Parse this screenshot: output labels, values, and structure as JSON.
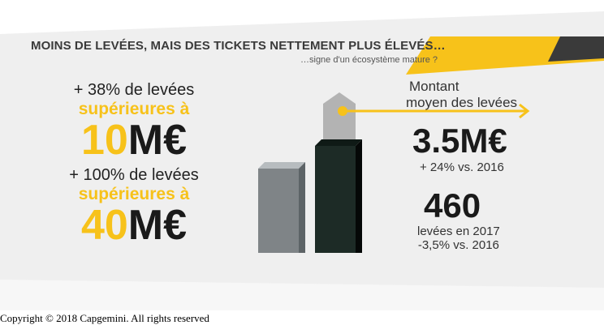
{
  "title": "MOINS DE LEVÉES, MAIS DES TICKETS NETTEMENT PLUS ÉLEVÉS…",
  "subtitle": "…signe d'un écosystème mature ?",
  "left_stats": [
    {
      "line1": "+ 38% de levées",
      "line2": "supérieures à",
      "amount": "10",
      "unit": "M€"
    },
    {
      "line1": "+ 100% de levées",
      "line2": "supérieures à",
      "amount": "40",
      "unit": "M€"
    }
  ],
  "right": {
    "average_label_line1": "Montant",
    "average_label_line2": "moyen des levées",
    "average_value": "3.5M€",
    "average_change": "+ 24% vs. 2016",
    "count_value": "460",
    "count_caption_line1": "levées en 2017",
    "count_caption_line2": "-3,5% vs. 2016"
  },
  "copyright": "Copyright © 2018 Capgemini. All rights reserved",
  "colors": {
    "accent": "#f7c21a",
    "dark_bar": "#1d2b26",
    "grey_bar": "#7f8487",
    "banner_dark": "#3a3a3a"
  }
}
